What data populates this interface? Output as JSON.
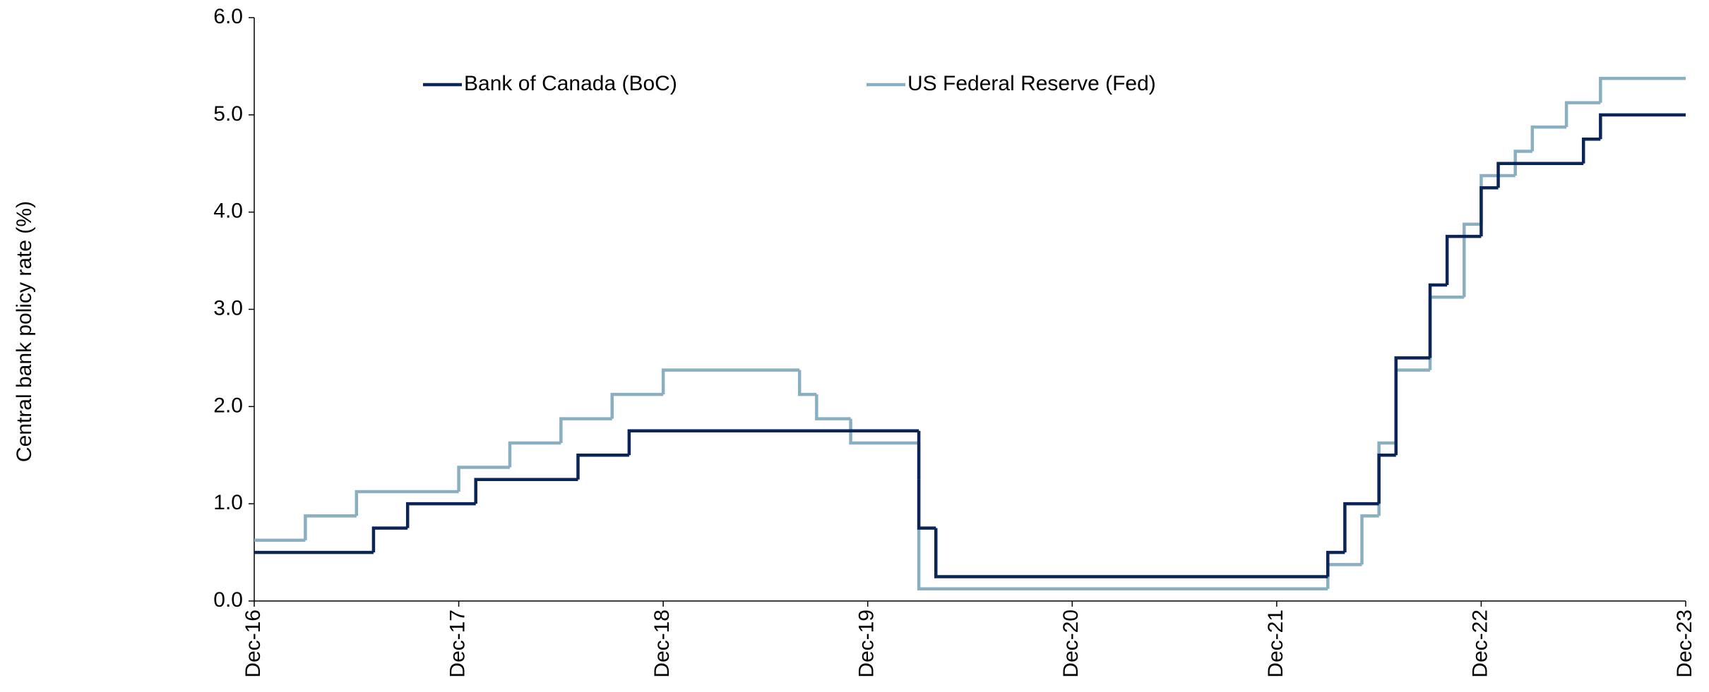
{
  "chart_data": {
    "type": "step-line",
    "y_label": "Central bank policy rate (%)",
    "xlim": [
      "2016-12",
      "2023-12"
    ],
    "xticks": [
      {
        "value": "2016-12",
        "label": "Dec-16"
      },
      {
        "value": "2017-12",
        "label": "Dec-17"
      },
      {
        "value": "2018-12",
        "label": "Dec-18"
      },
      {
        "value": "2019-12",
        "label": "Dec-19"
      },
      {
        "value": "2020-12",
        "label": "Dec-20"
      },
      {
        "value": "2021-12",
        "label": "Dec-21"
      },
      {
        "value": "2022-12",
        "label": "Dec-22"
      },
      {
        "value": "2023-12",
        "label": "Dec-23"
      }
    ],
    "ylim": [
      0,
      6
    ],
    "yticks": [
      {
        "value": 0,
        "label": "0.0"
      },
      {
        "value": 1,
        "label": "1.0"
      },
      {
        "value": 2,
        "label": "2.0"
      },
      {
        "value": 3,
        "label": "3.0"
      },
      {
        "value": 4,
        "label": "4.0"
      },
      {
        "value": 5,
        "label": "5.0"
      },
      {
        "value": 6,
        "label": "6.0"
      }
    ],
    "grid": false,
    "legend": "top",
    "series": [
      {
        "name": "Bank of Canada (BoC)",
        "color": "#0b2559",
        "x": [
          "2016-12",
          "2017-07",
          "2017-09",
          "2018-01",
          "2018-07",
          "2018-10",
          "2020-03",
          "2020-03",
          "2020-04",
          "2022-03",
          "2022-04",
          "2022-06",
          "2022-07",
          "2022-09",
          "2022-10",
          "2022-12",
          "2023-01",
          "2023-06",
          "2023-07",
          "2023-12"
        ],
        "values": [
          0.5,
          0.75,
          1.0,
          1.25,
          1.5,
          1.75,
          1.25,
          0.75,
          0.25,
          0.5,
          1.0,
          1.5,
          2.5,
          3.25,
          3.75,
          4.25,
          4.5,
          4.75,
          5.0,
          5.0
        ]
      },
      {
        "name": "US Federal Reserve (Fed)",
        "color": "#8aafc0",
        "x": [
          "2016-12",
          "2017-03",
          "2017-06",
          "2017-12",
          "2018-03",
          "2018-06",
          "2018-09",
          "2018-12",
          "2019-08",
          "2019-09",
          "2019-11",
          "2020-03",
          "2020-03",
          "2022-03",
          "2022-05",
          "2022-06",
          "2022-07",
          "2022-09",
          "2022-11",
          "2022-12",
          "2023-02",
          "2023-03",
          "2023-05",
          "2023-07",
          "2023-12"
        ],
        "values": [
          0.625,
          0.875,
          1.125,
          1.375,
          1.625,
          1.875,
          2.125,
          2.375,
          2.125,
          1.875,
          1.625,
          1.125,
          0.125,
          0.375,
          0.875,
          1.625,
          2.375,
          3.125,
          3.875,
          4.375,
          4.625,
          4.875,
          5.125,
          5.375,
          5.375
        ]
      }
    ]
  }
}
